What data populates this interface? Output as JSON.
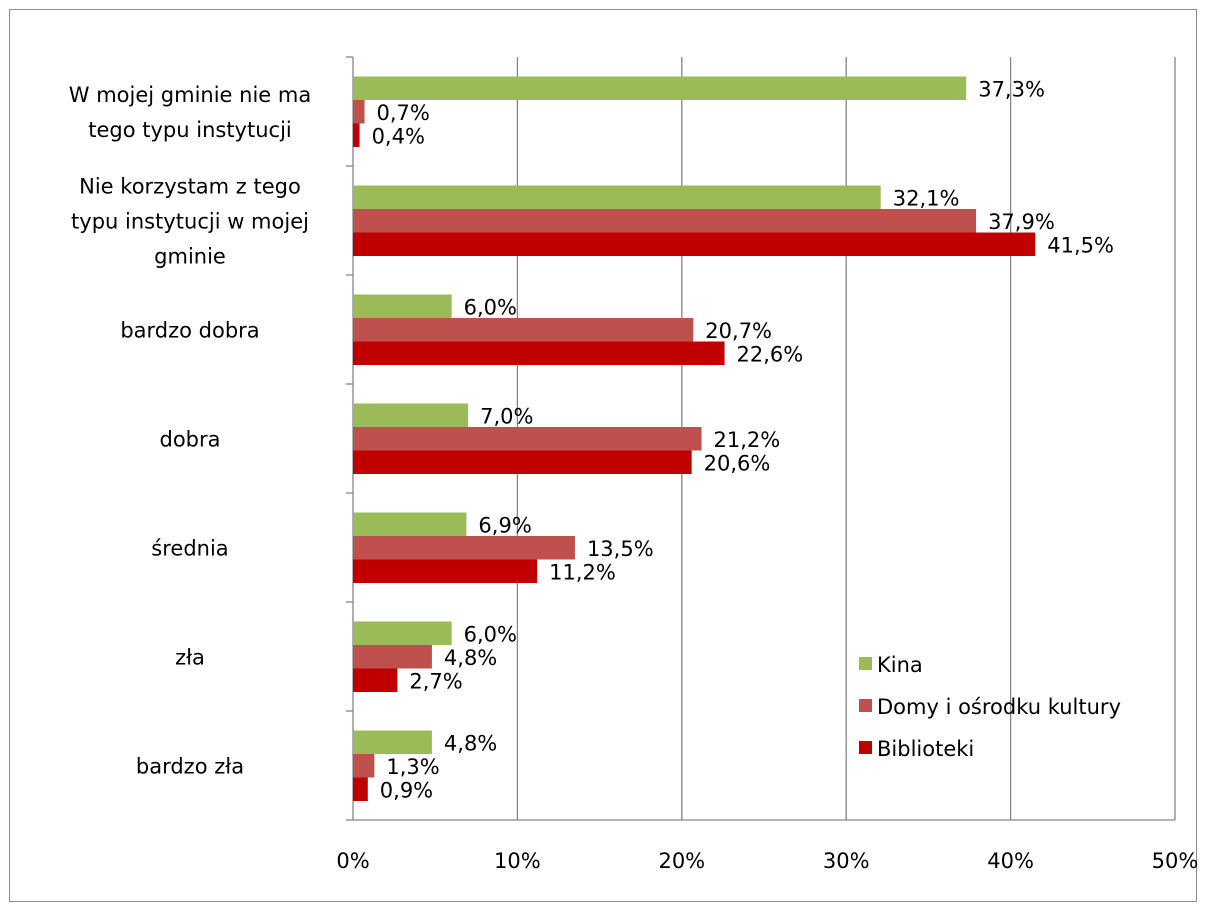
{
  "chart_data": {
    "type": "bar",
    "orientation": "horizontal",
    "title": "",
    "xlabel": "",
    "ylabel": "",
    "xlim": [
      0,
      50
    ],
    "x_ticks": [
      "0%",
      "10%",
      "20%",
      "30%",
      "40%",
      "50%"
    ],
    "grid": "vertical",
    "legend_position": "bottom-right",
    "categories": [
      "W mojej gminie nie ma tego typu instytucji",
      "Nie korzystam z tego typu instytucji w mojej gminie",
      "bardzo dobra",
      "dobra",
      "średnia",
      "zła",
      "bardzo zła"
    ],
    "category_lines": [
      [
        "W mojej gminie nie ma",
        "tego typu instytucji"
      ],
      [
        "Nie korzystam z tego",
        "typu instytucji w mojej",
        "gminie"
      ],
      [
        "bardzo dobra"
      ],
      [
        "dobra"
      ],
      [
        "średnia"
      ],
      [
        "zła"
      ],
      [
        "bardzo zła"
      ]
    ],
    "series": [
      {
        "name": "Kina",
        "color": "#9BBB59",
        "values": [
          37.3,
          32.1,
          6.0,
          7.0,
          6.9,
          6.0,
          4.8
        ],
        "labels": [
          "37,3%",
          "32,1%",
          "6,0%",
          "7,0%",
          "6,9%",
          "6,0%",
          "4,8%"
        ]
      },
      {
        "name": "Domy i ośrodku kultury",
        "color": "#C0504D",
        "values": [
          0.7,
          37.9,
          20.7,
          21.2,
          13.5,
          4.8,
          1.3
        ],
        "labels": [
          "0,7%",
          "37,9%",
          "20,7%",
          "21,2%",
          "13,5%",
          "4,8%",
          "1,3%"
        ]
      },
      {
        "name": "Biblioteki",
        "color": "#C00000",
        "values": [
          0.4,
          41.5,
          22.6,
          20.6,
          11.2,
          2.7,
          0.9
        ],
        "labels": [
          "0,4%",
          "41,5%",
          "22,6%",
          "20,6%",
          "11,2%",
          "2,7%",
          "0,9%"
        ]
      }
    ]
  }
}
